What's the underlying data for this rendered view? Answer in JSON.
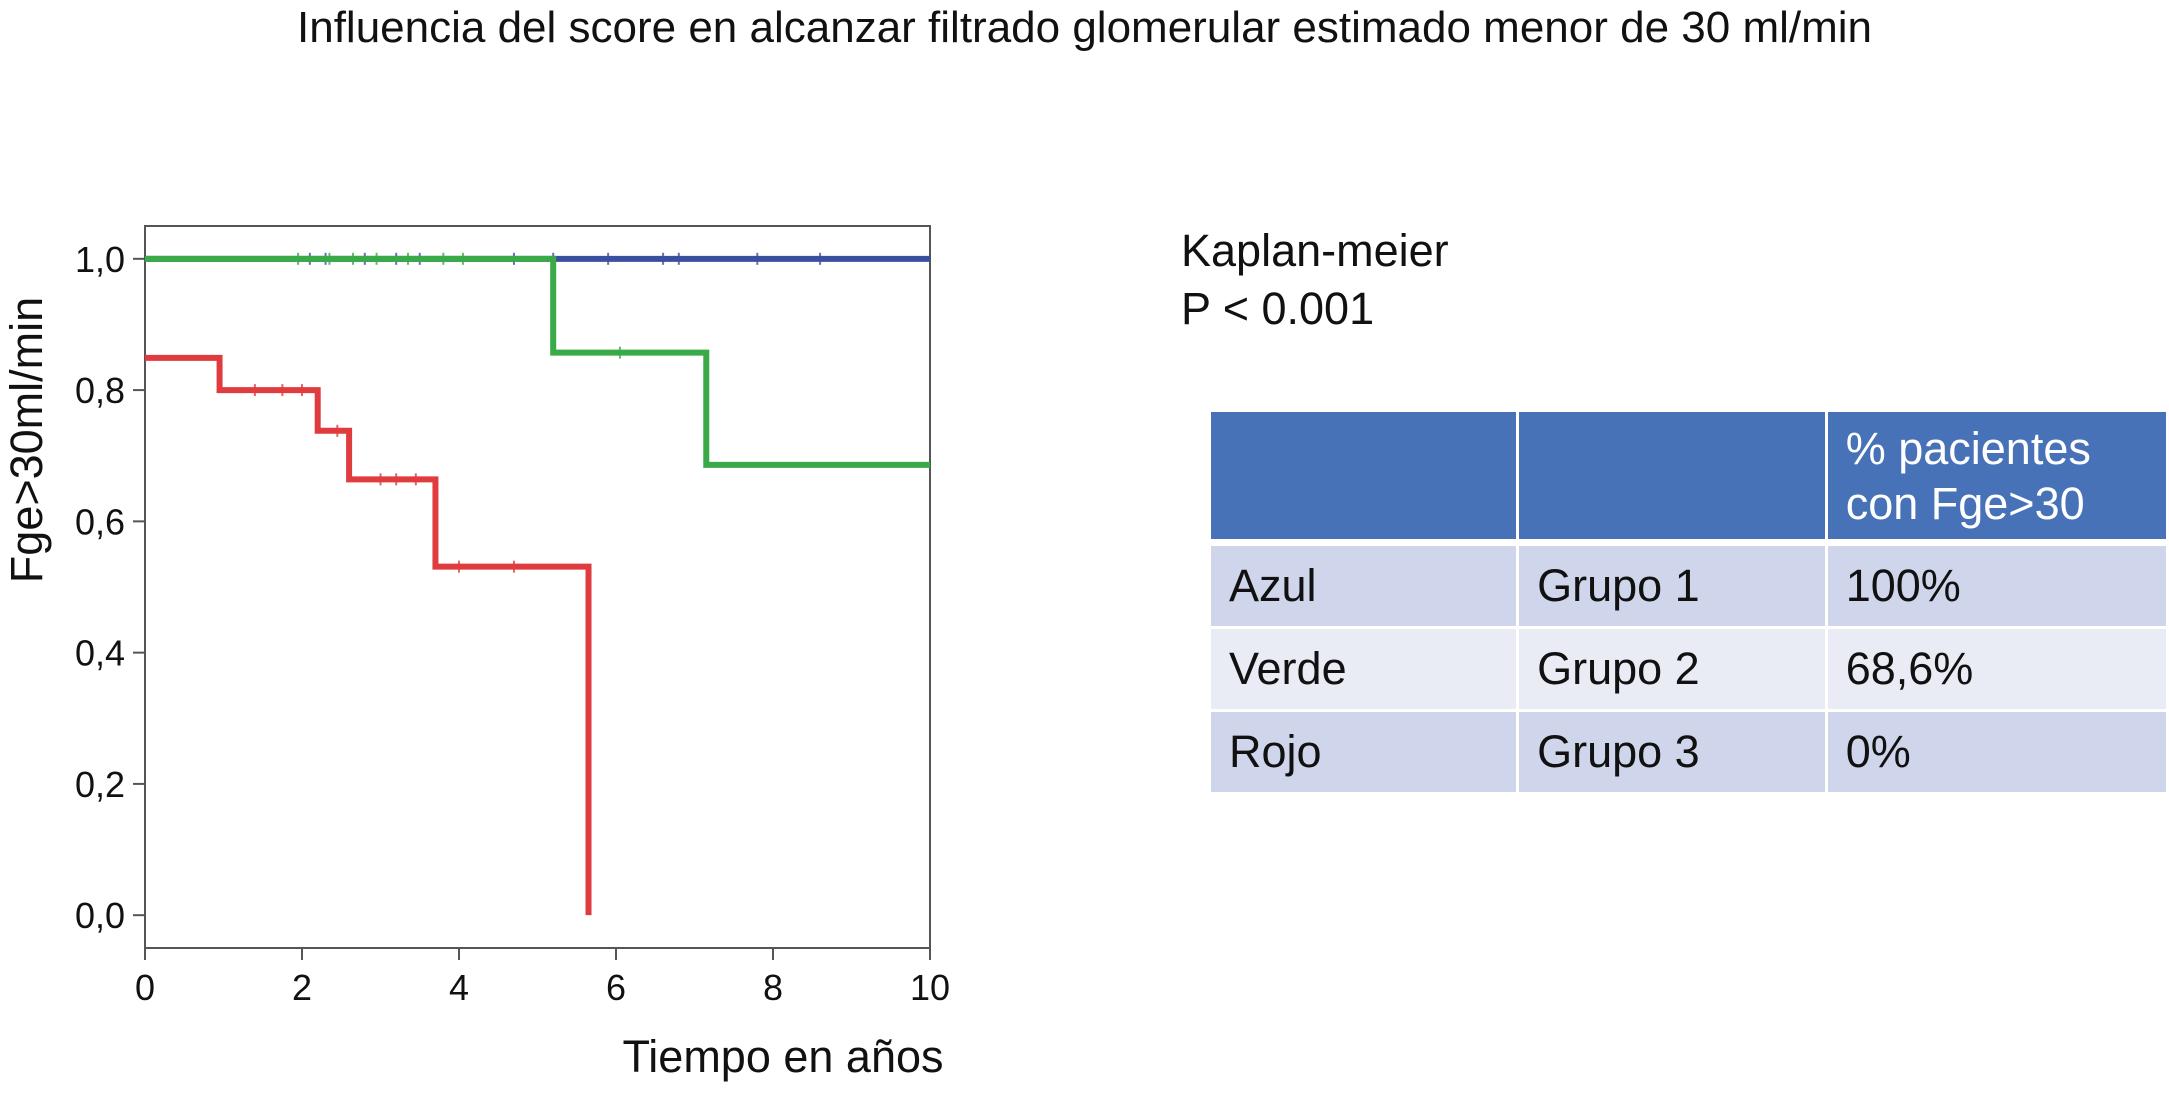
{
  "title": "Influencia del score en alcanzar filtrado glomerular estimado menor de 30 ml/min",
  "stats": {
    "method": "Kaplan-meier",
    "pvalue": "P < 0.001"
  },
  "table": {
    "headers": [
      "",
      "",
      "% pacientes con Fge>30"
    ],
    "rows": [
      [
        "Azul",
        "Grupo 1",
        "100%"
      ],
      [
        "Verde",
        "Grupo 2",
        "68,6%"
      ],
      [
        "Rojo",
        "Grupo 3",
        "0%"
      ]
    ]
  },
  "colors": {
    "blue": "#3b4fa0",
    "green": "#3aaa48",
    "red": "#e03c3f",
    "header_bg": "#4872b7",
    "row_odd": "#cfd5ea",
    "row_even": "#e9ebf5"
  },
  "chart_data": {
    "type": "line",
    "step": true,
    "title": "",
    "xlabel": "Tiempo en años",
    "ylabel": "Fge>30ml/min",
    "xlim": [
      0,
      10
    ],
    "ylim": [
      -0.05,
      1.05
    ],
    "xticks": [
      0,
      2,
      4,
      6,
      8,
      10
    ],
    "xtick_labels": [
      "0",
      "2",
      "4",
      "6",
      "8",
      "10"
    ],
    "yticks": [
      0,
      0.2,
      0.4,
      0.6,
      0.8,
      1.0
    ],
    "ytick_labels": [
      "0,0",
      "0,2",
      "0,4",
      "0,6",
      "0,8",
      "1,0"
    ],
    "grid": false,
    "series": [
      {
        "color": "#3b4fa0",
        "steps": [
          [
            0,
            1.0
          ],
          [
            10,
            1.0
          ]
        ],
        "censored": [
          2.1,
          2.3,
          2.8,
          3.2,
          3.5,
          4.7,
          5.2,
          5.9,
          6.6,
          6.8,
          7.8,
          8.6
        ]
      },
      {
        "color": "#3aaa48",
        "steps": [
          [
            0,
            1.0
          ],
          [
            5.2,
            0.857
          ],
          [
            7.15,
            0.686
          ],
          [
            10,
            0.686
          ]
        ],
        "censored": [
          1.95,
          2.35,
          2.65,
          2.95,
          3.35,
          3.8,
          4.05,
          6.05
        ]
      },
      {
        "color": "#e03c3f",
        "steps": [
          [
            0,
            0.849
          ],
          [
            0.95,
            0.8
          ],
          [
            2.2,
            0.738
          ],
          [
            2.6,
            0.664
          ],
          [
            3.7,
            0.531
          ],
          [
            5.65,
            0.0
          ]
        ],
        "censored": [
          1.4,
          1.75,
          2.0,
          2.45,
          3.0,
          3.2,
          3.45,
          4.0,
          4.7
        ]
      }
    ]
  }
}
